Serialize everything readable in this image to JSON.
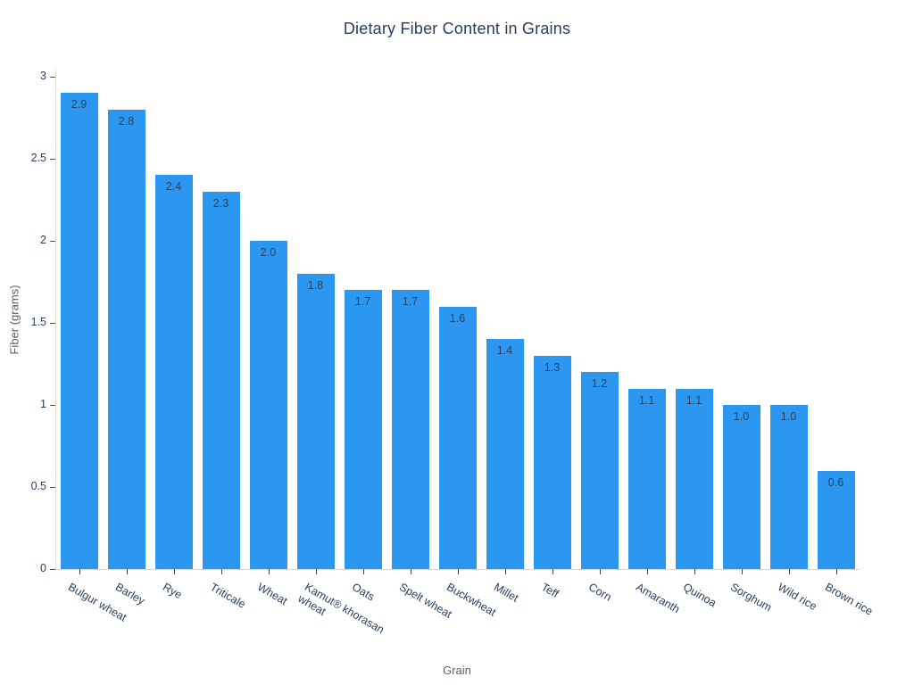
{
  "chart_data": {
    "type": "bar",
    "title": "Dietary Fiber Content in Grains",
    "xlabel": "Grain",
    "ylabel": "Fiber (grams)",
    "categories": [
      "Bulgur wheat",
      "Barley",
      "Rye",
      "Triticale",
      "Wheat",
      "Kamut® khorasan\nwheat",
      "Oats",
      "Spelt wheat",
      "Buckwheat",
      "Millet",
      "Teff",
      "Corn",
      "Amaranth",
      "Quinoa",
      "Sorghum",
      "Wild rice",
      "Brown rice"
    ],
    "values": [
      2.9,
      2.8,
      2.4,
      2.3,
      2.0,
      1.8,
      1.7,
      1.7,
      1.6,
      1.4,
      1.3,
      1.2,
      1.1,
      1.1,
      1.0,
      1.0,
      0.6
    ],
    "bar_labels": [
      "2.9",
      "2.8",
      "2.4",
      "2.3",
      "2.0",
      "1.8",
      "1.7",
      "1.7",
      "1.6",
      "1.4",
      "1.3",
      "1.2",
      "1.1",
      "1.1",
      "1.0",
      "1.0",
      "0.6"
    ],
    "yticks": [
      0,
      0.5,
      1,
      1.5,
      2,
      2.5,
      3
    ],
    "ytick_labels": [
      "0",
      "0.5",
      "1",
      "1.5",
      "2",
      "2.5",
      "3"
    ],
    "ylim": [
      0,
      3.04
    ],
    "grid": false,
    "legend": "none",
    "colors": {
      "bar": "#2b97f0",
      "tick_text": "#2a3f5f",
      "axis_title_text": "#5b6066",
      "title_text": "#2a3f5f",
      "axis_line": "#d9d9d9",
      "tick_mark": "#4a4a4a",
      "background": "#ffffff"
    }
  }
}
